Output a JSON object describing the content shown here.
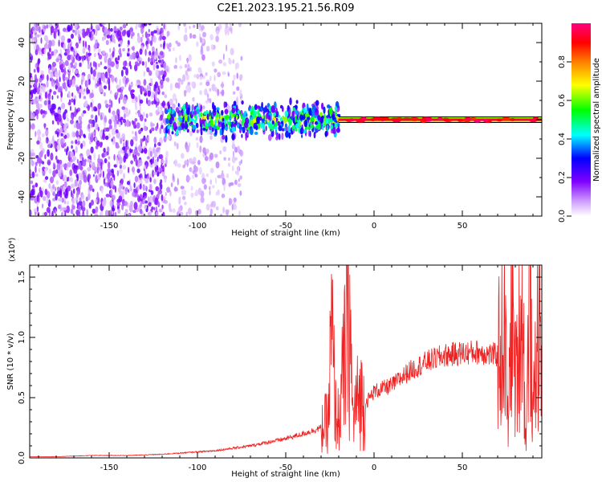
{
  "chart_data": [
    {
      "type": "heatmap",
      "title": "C2E1.2023.195.21.56.R09",
      "xlabel": "Height of straight line (km)",
      "ylabel": "Frequency (Hz)",
      "xlim": [
        -195,
        95
      ],
      "ylim": [
        -50,
        50
      ],
      "x_ticks": [
        "-150",
        "-100",
        "-50",
        "0",
        "50"
      ],
      "y_ticks": [
        "40",
        "20",
        "0",
        "-20",
        "-40"
      ],
      "colorbar": {
        "label": "Normalized spectral amplitude",
        "range": [
          0,
          1
        ],
        "ticks": [
          "0.0",
          "0.2",
          "0.4",
          "0.6",
          "0.8"
        ],
        "colormap": [
          "#ffffff",
          "#cc99ff",
          "#7f00ff",
          "#0000ff",
          "#00ffff",
          "#00ff00",
          "#ffff00",
          "#ff7f00",
          "#ff0000",
          "#ff0080"
        ]
      },
      "features": [
        {
          "x_range": [
            -195,
            -118
          ],
          "y_range": [
            -50,
            50
          ],
          "level": 0.15,
          "pattern": "broad noise"
        },
        {
          "x_range": [
            -118,
            -75
          ],
          "y_range": [
            -50,
            50
          ],
          "level": 0.08,
          "pattern": "sparse noise"
        },
        {
          "x_range": [
            -118,
            -20
          ],
          "y_center": 0,
          "y_width": 8,
          "level": 0.45,
          "pattern": "noisy band"
        },
        {
          "x_range": [
            -20,
            95
          ],
          "y_center": 0,
          "y_width": 2,
          "level": 0.95,
          "pattern": "steady line"
        }
      ],
      "grid": false
    },
    {
      "type": "line",
      "xlabel": "Height of straight line (km)",
      "ylabel": "SNR (10 * v/v)",
      "y_multiplier": "(x10⁴)",
      "xlim": [
        -195,
        95
      ],
      "ylim": [
        0,
        1.6
      ],
      "x_ticks": [
        "-150",
        "-100",
        "-50",
        "0",
        "50"
      ],
      "y_ticks": [
        "0.0",
        "0.5",
        "1.0",
        "1.5"
      ],
      "series": [
        {
          "color": "#ee2222",
          "x": [
            -195,
            -180,
            -160,
            -140,
            -120,
            -110,
            -100,
            -90,
            -80,
            -70,
            -60,
            -50,
            -40,
            -30,
            -26,
            -24,
            -22,
            -20,
            -16,
            -14,
            -12,
            -10,
            -8,
            -5,
            0,
            10,
            20,
            30,
            40,
            50,
            60,
            65,
            70,
            74,
            76,
            78,
            80,
            84,
            86,
            88,
            90,
            92,
            95
          ],
          "y": [
            0.01,
            0.01,
            0.02,
            0.02,
            0.03,
            0.04,
            0.05,
            0.06,
            0.08,
            0.1,
            0.13,
            0.16,
            0.2,
            0.25,
            0.3,
            1.05,
            0.4,
            0.3,
            0.9,
            1.25,
            0.3,
            0.45,
            0.5,
            0.45,
            0.55,
            0.6,
            0.72,
            0.8,
            0.85,
            0.87,
            0.88,
            0.86,
            0.85,
            1.05,
            0.2,
            1.4,
            0.6,
            1.3,
            0.1,
            1.45,
            0.3,
            1.0,
            0.9
          ],
          "noise": 0.12
        }
      ],
      "grid": false
    }
  ]
}
